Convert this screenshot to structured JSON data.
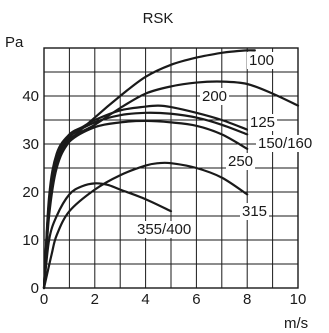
{
  "chart_data": {
    "type": "line",
    "title": "RSK",
    "xlabel": "m/s",
    "ylabel": "Pa",
    "xlim": [
      0,
      10
    ],
    "ylim": [
      0,
      50
    ],
    "grid": true,
    "x_ticks": [
      0,
      2,
      4,
      6,
      8,
      10
    ],
    "y_ticks": [
      0,
      10,
      20,
      30,
      40
    ],
    "series": [
      {
        "name": "100",
        "x": [
          0,
          0.2,
          0.5,
          1,
          2,
          3,
          4,
          5,
          6,
          7,
          7.5,
          8,
          8.3
        ],
        "y": [
          0,
          15,
          25,
          30.5,
          35.5,
          40,
          44,
          46.5,
          48,
          49,
          49.3,
          49.5,
          49.5
        ]
      },
      {
        "name": "200",
        "x": [
          0,
          0.2,
          0.5,
          1,
          2,
          3,
          4,
          5,
          6,
          7,
          8,
          9,
          10
        ],
        "y": [
          0,
          18,
          27,
          31,
          34,
          37.5,
          40.5,
          42,
          42.8,
          43,
          42.5,
          40.5,
          38
        ]
      },
      {
        "name": "125",
        "x": [
          0,
          0.2,
          0.5,
          1,
          1.5,
          2,
          3,
          4,
          4.5,
          5,
          6,
          7,
          8
        ],
        "y": [
          0,
          19,
          28,
          32,
          33.5,
          35,
          37,
          37.8,
          38,
          37.7,
          36.5,
          35,
          33
        ]
      },
      {
        "name": "150/160",
        "x": [
          0,
          0.2,
          0.5,
          1,
          2,
          3,
          4,
          5,
          6,
          7,
          8
        ],
        "y": [
          0,
          18,
          27,
          31.5,
          34.5,
          36,
          36.5,
          36.3,
          35.5,
          34,
          32
        ]
      },
      {
        "name": "250",
        "x": [
          0,
          0.2,
          0.5,
          1,
          2,
          3,
          4,
          5,
          6,
          7,
          8
        ],
        "y": [
          0,
          17,
          26,
          30.5,
          33.5,
          34.5,
          34.8,
          34.5,
          33.8,
          32,
          29
        ]
      },
      {
        "name": "315",
        "x": [
          0,
          0.3,
          0.5,
          1,
          2,
          3,
          4,
          4.5,
          5,
          6,
          7,
          8
        ],
        "y": [
          0,
          7,
          11,
          16,
          20.5,
          23.5,
          25.5,
          26,
          26,
          25,
          23,
          19.5
        ]
      },
      {
        "name": "355/400",
        "x": [
          0,
          0.2,
          0.5,
          1,
          1.5,
          2,
          2.5,
          3,
          4,
          5
        ],
        "y": [
          0,
          10,
          15,
          19.5,
          21.2,
          21.8,
          21.5,
          20.5,
          18.5,
          16
        ]
      }
    ],
    "curve_labels": [
      "100",
      "200",
      "125",
      "150/160",
      "250",
      "315",
      "355/400"
    ]
  },
  "colors": {
    "line": "#1a1a1a",
    "grid": "#1a1a1a",
    "background": "#ffffff"
  }
}
